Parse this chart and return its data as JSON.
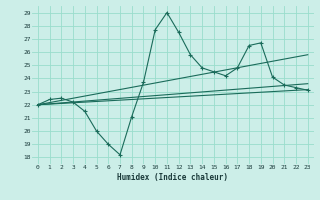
{
  "xlabel": "Humidex (Indice chaleur)",
  "background_color": "#cceee8",
  "grid_color": "#99ddcc",
  "line_color": "#1a6b5a",
  "xlim": [
    -0.5,
    23.5
  ],
  "ylim": [
    17.5,
    29.5
  ],
  "xticks": [
    0,
    1,
    2,
    3,
    4,
    5,
    6,
    7,
    8,
    9,
    10,
    11,
    12,
    13,
    14,
    15,
    16,
    17,
    18,
    19,
    20,
    21,
    22,
    23
  ],
  "yticks": [
    18,
    19,
    20,
    21,
    22,
    23,
    24,
    25,
    26,
    27,
    28,
    29
  ],
  "series": {
    "volatile": {
      "x": [
        0,
        1,
        2,
        3,
        4,
        5,
        6,
        7,
        8,
        9,
        10,
        11,
        12,
        13,
        14,
        15,
        16,
        17,
        18,
        19,
        20,
        21,
        22,
        23
      ],
      "y": [
        22.0,
        22.4,
        22.5,
        22.2,
        21.5,
        20.0,
        19.0,
        18.2,
        21.1,
        23.7,
        27.7,
        29.0,
        27.5,
        25.8,
        24.8,
        24.5,
        24.2,
        24.8,
        26.5,
        26.7,
        24.1,
        23.5,
        23.3,
        23.1
      ]
    },
    "trend1": {
      "x": [
        0,
        23
      ],
      "y": [
        22.0,
        25.8
      ]
    },
    "trend2": {
      "x": [
        0,
        23
      ],
      "y": [
        22.0,
        23.6
      ]
    },
    "trend3": {
      "x": [
        0,
        23
      ],
      "y": [
        22.0,
        23.15
      ]
    }
  }
}
